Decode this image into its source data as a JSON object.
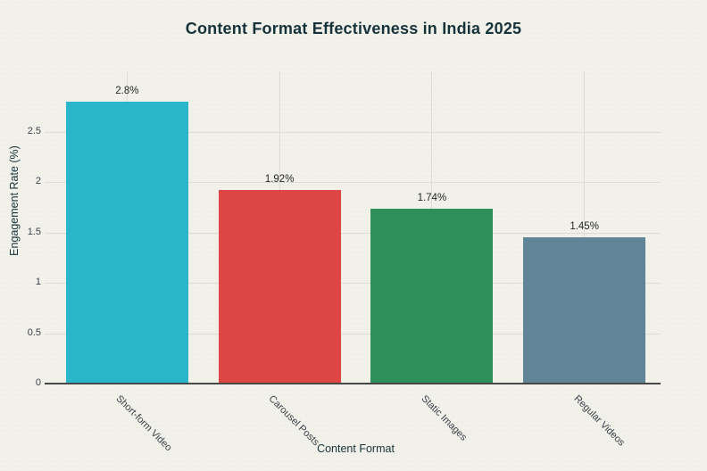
{
  "chart_data": {
    "type": "bar",
    "title": "Content Format Effectiveness in India 2025",
    "xlabel": "Content Format",
    "ylabel": "Engagement Rate (%)",
    "categories": [
      "Short-form Video",
      "Carousel Posts",
      "Static Images",
      "Regular Videos"
    ],
    "values": [
      2.8,
      1.92,
      1.74,
      1.45
    ],
    "value_labels": [
      "2.8%",
      "1.92%",
      "1.74%",
      "1.45%"
    ],
    "bar_colors": [
      "#2ab6c9",
      "#de4545",
      "#2e8f58",
      "#5f8597"
    ],
    "yticks": [
      0,
      0.5,
      1,
      1.5,
      2,
      2.5
    ],
    "ytick_labels": [
      "0",
      "0.5",
      "1",
      "1.5",
      "2",
      "2.5"
    ],
    "ylim": [
      0,
      3.1
    ],
    "grid": true,
    "legend": false,
    "colors": {
      "background": "#f1f0e9",
      "title_text": "#16333c",
      "axis_title_text": "#16333c",
      "gridline": "#dddcd3",
      "axis_line": "#474747",
      "tick_label_text": "#39414a",
      "value_label_text": "#262626"
    }
  }
}
